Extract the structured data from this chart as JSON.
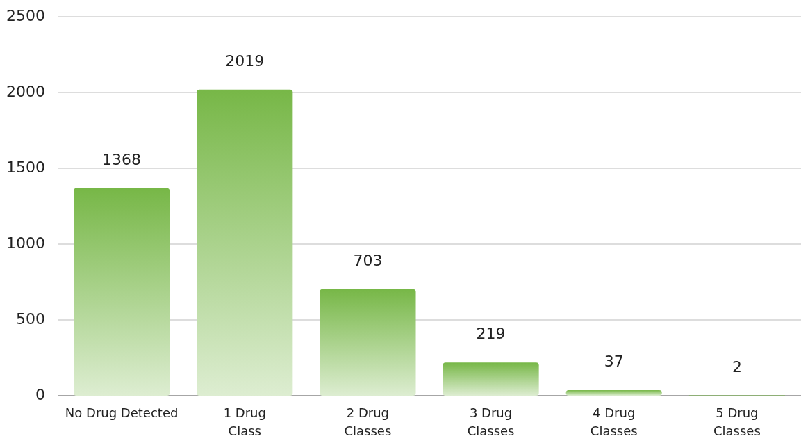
{
  "chart_data": {
    "type": "bar",
    "categories": [
      "No Drug Detected",
      "1 Drug\nClass",
      "2 Drug\nClasses",
      "3 Drug\nClasses",
      "4 Drug\nClasses",
      "5 Drug\nClasses"
    ],
    "values": [
      1368,
      2019,
      703,
      219,
      37,
      2
    ],
    "color": "#77b747",
    "ylim": [
      0,
      2500
    ],
    "yticks": [
      0,
      500,
      1000,
      1500,
      2000,
      2500
    ],
    "grid": "y",
    "data_labels": true
  }
}
